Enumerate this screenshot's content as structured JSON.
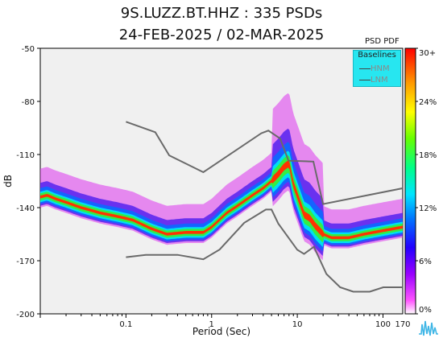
{
  "chart_data": {
    "type": "heatmap",
    "title": "9S.LUZZ.BT.HHZ : 335 PSDs",
    "subtitle": "24-FEB-2025 / 02-MAR-2025",
    "xlabel": "Period (Sec)",
    "ylabel": "dB",
    "x_scale": "log",
    "xlim": [
      0.01,
      170
    ],
    "ylim": [
      -200,
      -50
    ],
    "x_ticks": [
      "0.1",
      "1",
      "10",
      "100",
      "170"
    ],
    "y_ticks": [
      "-50",
      "-80",
      "-110",
      "-140",
      "-170",
      "-200"
    ],
    "colorbar": {
      "title": "PSD PDF",
      "ticks": [
        "30+",
        "24%",
        "18%",
        "12%",
        "6%",
        "0%"
      ]
    },
    "legend": {
      "title": "Baselines",
      "placement": "top-right",
      "entries": [
        "HNM",
        "LNM"
      ]
    },
    "baselines": [
      {
        "name": "HNM",
        "color": "#6a6a6a",
        "x": [
          0.1,
          0.22,
          0.32,
          0.8,
          3.8,
          4.6,
          6.3,
          7.9,
          15.4,
          20,
          354.8
        ],
        "y": [
          -91.5,
          -97.4,
          -110.5,
          -120,
          -98,
          -96.5,
          -101,
          -113.5,
          -114,
          -138,
          -126
        ]
      },
      {
        "name": "LNM",
        "color": "#6a6a6a",
        "x": [
          0.1,
          0.17,
          0.4,
          0.8,
          1.24,
          2.4,
          4.3,
          5,
          6,
          10,
          12,
          15.6,
          21.9,
          31.6,
          45,
          70,
          101,
          154,
          328
        ],
        "y": [
          -168,
          -166.7,
          -166.7,
          -169.2,
          -163.7,
          -148.6,
          -141.1,
          -141.1,
          -149,
          -163.8,
          -166.2,
          -162.1,
          -177.5,
          -185,
          -187.5,
          -187.5,
          -185,
          -185,
          -185
        ]
      }
    ],
    "density_ridge": {
      "period": [
        0.01,
        0.012,
        0.015,
        0.02,
        0.03,
        0.05,
        0.08,
        0.12,
        0.2,
        0.3,
        0.5,
        0.8,
        1,
        1.5,
        2,
        3,
        4,
        5,
        6,
        7,
        8,
        9,
        10,
        12,
        14,
        16,
        20,
        25,
        30,
        40,
        60,
        100,
        170
      ],
      "db": [
        -134,
        -133,
        -135,
        -137,
        -140,
        -143,
        -145,
        -147,
        -152,
        -155,
        -154,
        -154,
        -151,
        -143,
        -139,
        -133,
        -129,
        -125,
        -121,
        -117,
        -115,
        -127,
        -133,
        -144,
        -146,
        -150,
        -155,
        -157,
        -157,
        -157,
        -155,
        -153,
        -151
      ]
    }
  }
}
